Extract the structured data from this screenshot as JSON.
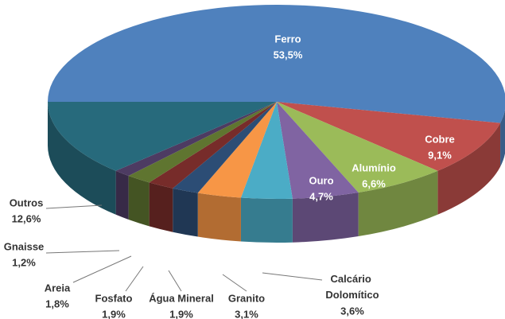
{
  "chart_data": {
    "type": "pie",
    "categories": [
      "Ferro",
      "Cobre",
      "Alumínio",
      "Ouro",
      "Calcário Dolomítico",
      "Granito",
      "Água Mineral",
      "Fosfato",
      "Areia",
      "Gnaisse",
      "Outros"
    ],
    "values": [
      53.5,
      9.1,
      6.6,
      4.7,
      3.6,
      3.1,
      1.9,
      1.9,
      1.8,
      1.2,
      12.6
    ],
    "value_labels": [
      "53,5%",
      "9,1%",
      "6,6%",
      "4,7%",
      "3,6%",
      "3,1%",
      "1,9%",
      "1,9%",
      "1,8%",
      "1,2%",
      "12,6%"
    ],
    "colors": [
      "#4f81bd",
      "#c0504d",
      "#9bbb59",
      "#8064a2",
      "#4bacc6",
      "#f79646",
      "#2c4d75",
      "#772c2a",
      "#5f7530",
      "#4d3b62",
      "#276a7c"
    ]
  }
}
